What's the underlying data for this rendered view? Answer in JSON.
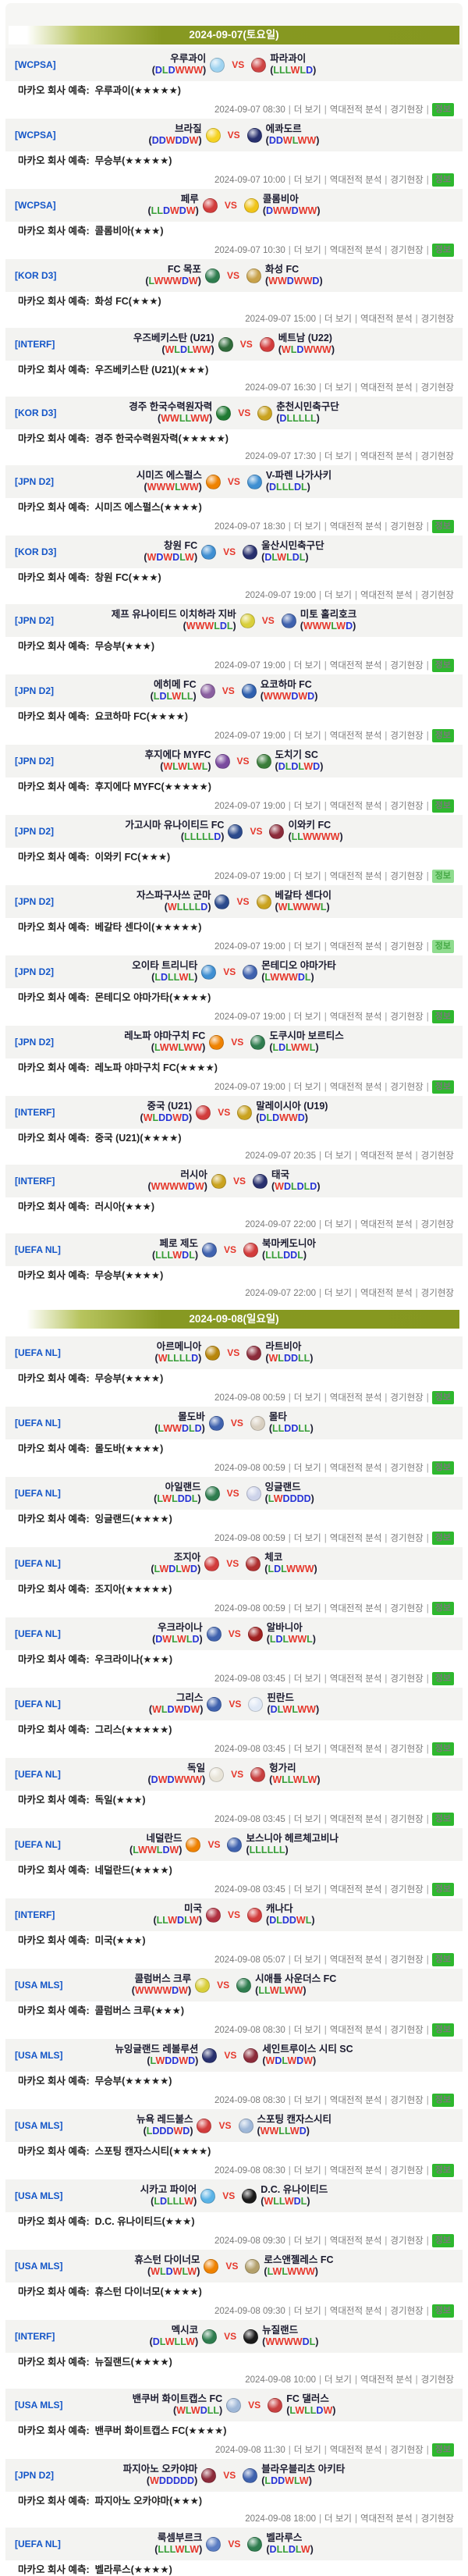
{
  "labels": {
    "prediction_prefix": "마카오 회사 예측:",
    "vs": "VS",
    "more_link": "더 보기",
    "h2h_link": "역대전적 분석",
    "venue_link": "경기현장",
    "info_badge": "정보",
    "star": "★"
  },
  "colors": {
    "win_letter": "#e5372b",
    "draw_letter": "#2733d6",
    "loss_letter": "#379e37",
    "league_link": "#1456c8",
    "date_bar_olive": "#879922",
    "info_badge_bg": "#2eb82e",
    "header_row_bg": "#f3f3f1"
  },
  "sections": [
    {
      "date_header": "2024-09-07(토요일)",
      "matches": [
        {
          "league": "[WCPSA]",
          "home": {
            "name": "우루과이",
            "form": "DLDWWW",
            "logo": "#9fd3f0"
          },
          "away": {
            "name": "파라과이",
            "form": "LLLWLD",
            "logo": "#cf4444"
          },
          "prediction": "우루과이",
          "stars": 5,
          "time": "2024-09-07 08:30",
          "info": "y"
        },
        {
          "league": "[WCPSA]",
          "home": {
            "name": "브라질",
            "form": "DDWDDW",
            "logo": "#f5d323"
          },
          "away": {
            "name": "에콰도르",
            "form": "DDWLWW",
            "logo": "#28306e"
          },
          "prediction": "무승부",
          "stars": 5,
          "time": "2024-09-07 10:00",
          "info": "y"
        },
        {
          "league": "[WCPSA]",
          "home": {
            "name": "페루",
            "form": "LLDWDW",
            "logo": "#d23c3c"
          },
          "away": {
            "name": "콜롬비아",
            "form": "DWWDWW",
            "logo": "#f0c419"
          },
          "prediction": "콜롬비아",
          "stars": 3,
          "time": "2024-09-07 10:30",
          "info": "y"
        },
        {
          "league": "[KOR D3]",
          "home": {
            "name": "FC 목포",
            "form": "LWWWDW",
            "logo": "#2f7d4f"
          },
          "away": {
            "name": "화성 FC",
            "form": "WWDWWD",
            "logo": "#c8a24a"
          },
          "prediction": "화성 FC",
          "stars": 3,
          "time": "2024-09-07 15:00",
          "info": "n"
        },
        {
          "league": "[INTERF]",
          "home": {
            "name": "우즈베키스탄 (U21)",
            "form": "WLDLWW",
            "logo": "#2f6b3a"
          },
          "away": {
            "name": "베트남 (U22)",
            "form": "WLDWWW",
            "logo": "#d23c3c"
          },
          "prediction": "우즈베키스탄 (U21)",
          "stars": 3,
          "time": "2024-09-07 16:30",
          "info": "n"
        },
        {
          "league": "[KOR D3]",
          "home": {
            "name": "경주 한국수력원자력",
            "form": "WWLLWW",
            "logo": "#1f7a33"
          },
          "away": {
            "name": "춘천시민축구단",
            "form": "DLLLLL",
            "logo": "#caa31f"
          },
          "prediction": "경주 한국수력원자력",
          "stars": 5,
          "time": "2024-09-07 17:30",
          "info": "n"
        },
        {
          "league": "[JPN D2]",
          "home": {
            "name": "시미즈 에스펄스",
            "form": "WWWLWW",
            "logo": "#ef8200"
          },
          "away": {
            "name": "V-파렌 나가사키",
            "form": "DLLLDL",
            "logo": "#3f8fd2"
          },
          "prediction": "시미즈 에스펄스",
          "stars": 4,
          "time": "2024-09-07 18:30",
          "info": "y"
        },
        {
          "league": "[KOR D3]",
          "home": {
            "name": "창원 FC",
            "form": "WDWDLW",
            "logo": "#3f8fd2"
          },
          "away": {
            "name": "울산시민축구단",
            "form": "DLWLDL",
            "logo": "#28306e"
          },
          "prediction": "창원 FC",
          "stars": 3,
          "time": "2024-09-07 19:00",
          "info": "n"
        },
        {
          "league": "[JPN D2]",
          "home": {
            "name": "제프 유나이티드 이치하라 지바",
            "form": "WWWLDL",
            "logo": "#d9cf3a"
          },
          "away": {
            "name": "미토 홀리호크",
            "form": "WWWLWD",
            "logo": "#3f62ae"
          },
          "prediction": "무승부",
          "stars": 3,
          "time": "2024-09-07 19:00",
          "info": "y"
        },
        {
          "league": "[JPN D2]",
          "home": {
            "name": "에히메 FC",
            "form": "LDLWLL",
            "logo": "#8a5fa0"
          },
          "away": {
            "name": "요코하마 FC",
            "form": "WWWDWD",
            "logo": "#2e5fae"
          },
          "prediction": "요코하마 FC",
          "stars": 4,
          "time": "2024-09-07 19:00",
          "info": "y"
        },
        {
          "league": "[JPN D2]",
          "home": {
            "name": "후지에다 MYFC",
            "form": "WLWLWL",
            "logo": "#7a4a9e"
          },
          "away": {
            "name": "도치기 SC",
            "form": "DLDLWD",
            "logo": "#3a7d3a"
          },
          "prediction": "후지에다 MYFC",
          "stars": 5,
          "time": "2024-09-07 19:00",
          "info": "y"
        },
        {
          "league": "[JPN D2]",
          "home": {
            "name": "가고시마 유나이티드 FC",
            "form": "LLLLLD",
            "logo": "#2b4a8c"
          },
          "away": {
            "name": "이와키 FC",
            "form": "LLWWWW",
            "logo": "#8c2b3a"
          },
          "prediction": "이와키 FC",
          "stars": 3,
          "time": "2024-09-07 19:00",
          "info": "f"
        },
        {
          "league": "[JPN D2]",
          "home": {
            "name": "자스파구사쓰 군마",
            "form": "WLLLLD",
            "logo": "#2b4a8c"
          },
          "away": {
            "name": "베갈타 센다이",
            "form": "WLWWWL",
            "logo": "#caa31f"
          },
          "prediction": "베갈타 센다이",
          "stars": 5,
          "time": "2024-09-07 19:00",
          "info": "f"
        },
        {
          "league": "[JPN D2]",
          "home": {
            "name": "오이타 트리니타",
            "form": "LDLLWL",
            "logo": "#3f8fd2"
          },
          "away": {
            "name": "몬테디오 야마가타",
            "form": "LWWWDL",
            "logo": "#3f62ae"
          },
          "prediction": "몬테디오 야마가타",
          "stars": 4,
          "time": "2024-09-07 19:00",
          "info": "y"
        },
        {
          "league": "[JPN D2]",
          "home": {
            "name": "레노파 야마구치 FC",
            "form": "LWWLWW",
            "logo": "#ef8200"
          },
          "away": {
            "name": "도쿠시마 보르티스",
            "form": "LDLWWL",
            "logo": "#2f7d4f"
          },
          "prediction": "레노파 야마구치 FC",
          "stars": 4,
          "time": "2024-09-07 19:00",
          "info": "y"
        },
        {
          "league": "[INTERF]",
          "home": {
            "name": "중국 (U21)",
            "form": "WLDDWD",
            "logo": "#d23c3c"
          },
          "away": {
            "name": "말레이시아 (U19)",
            "form": "DLDWWD",
            "logo": "#caa31f"
          },
          "prediction": "중국 (U21)",
          "stars": 4,
          "time": "2024-09-07 20:35",
          "info": "n"
        },
        {
          "league": "[INTERF]",
          "home": {
            "name": "러시아",
            "form": "WWWWDW",
            "logo": "#caa31f"
          },
          "away": {
            "name": "태국",
            "form": "WDLDLD",
            "logo": "#28306e"
          },
          "prediction": "러시아",
          "stars": 3,
          "time": "2024-09-07 22:00",
          "info": "n"
        },
        {
          "league": "[UEFA NL]",
          "home": {
            "name": "페로 제도",
            "form": "LLLWDL",
            "logo": "#3f62ae"
          },
          "away": {
            "name": "북마케도니아",
            "form": "LLLDDL",
            "logo": "#d23c3c"
          },
          "prediction": "무승부",
          "stars": 4,
          "time": "2024-09-07 22:00",
          "info": "n"
        }
      ]
    },
    {
      "date_header": "2024-09-08(일요일)",
      "matches": [
        {
          "league": "[UEFA NL]",
          "home": {
            "name": "아르메니아",
            "form": "WLLLLD",
            "logo": "#b8860b"
          },
          "away": {
            "name": "라트비아",
            "form": "WLDDLL",
            "logo": "#8c2b3a"
          },
          "prediction": "무승부",
          "stars": 4,
          "time": "2024-09-08 00:59",
          "info": "y"
        },
        {
          "league": "[UEFA NL]",
          "home": {
            "name": "몰도바",
            "form": "LWWDLD",
            "logo": "#3f62ae"
          },
          "away": {
            "name": "몰타",
            "form": "LLDDLL",
            "logo": "#d8cfc0"
          },
          "prediction": "몰도바",
          "stars": 4,
          "time": "2024-09-08 00:59",
          "info": "y"
        },
        {
          "league": "[UEFA NL]",
          "home": {
            "name": "아일랜드",
            "form": "LWLDDL",
            "logo": "#2f7d4f"
          },
          "away": {
            "name": "잉글랜드",
            "form": "LWDDDD",
            "logo": "#cdd3ea"
          },
          "prediction": "잉글랜드",
          "stars": 4,
          "time": "2024-09-08 00:59",
          "info": "y"
        },
        {
          "league": "[UEFA NL]",
          "home": {
            "name": "조지아",
            "form": "LWDLWD",
            "logo": "#d23c3c"
          },
          "away": {
            "name": "체코",
            "form": "LDLWWW",
            "logo": "#b03030"
          },
          "prediction": "조지아",
          "stars": 5,
          "time": "2024-09-08 00:59",
          "info": "y"
        },
        {
          "league": "[UEFA NL]",
          "home": {
            "name": "우크라이나",
            "form": "DWLWLD",
            "logo": "#3f62ae"
          },
          "away": {
            "name": "알바니아",
            "form": "LDLWWL",
            "logo": "#a02020"
          },
          "prediction": "우크라이나",
          "stars": 3,
          "time": "2024-09-08 03:45",
          "info": "y"
        },
        {
          "league": "[UEFA NL]",
          "home": {
            "name": "그리스",
            "form": "WLDWDW",
            "logo": "#3f62ae"
          },
          "away": {
            "name": "핀란드",
            "form": "DLWLWW",
            "logo": "#dfe8f5"
          },
          "prediction": "그리스",
          "stars": 5,
          "time": "2024-09-08 03:45",
          "info": "y"
        },
        {
          "league": "[UEFA NL]",
          "home": {
            "name": "독일",
            "form": "DWDWWW",
            "logo": "#e8e4d8"
          },
          "away": {
            "name": "헝가리",
            "form": "WLLWLW",
            "logo": "#c84040"
          },
          "prediction": "독일",
          "stars": 3,
          "time": "2024-09-08 03:45",
          "info": "y"
        },
        {
          "league": "[UEFA NL]",
          "home": {
            "name": "네덜란드",
            "form": "LWWLDW",
            "logo": "#ef8200"
          },
          "away": {
            "name": "보스니아 헤르체고비나",
            "form": "LLLLLL",
            "logo": "#3f62ae"
          },
          "prediction": "네덜란드",
          "stars": 4,
          "time": "2024-09-08 03:45",
          "info": "y"
        },
        {
          "league": "[INTERF]",
          "home": {
            "name": "미국",
            "form": "LLWDLW",
            "logo": "#b03040"
          },
          "away": {
            "name": "캐나다",
            "form": "DLDDWL",
            "logo": "#d23c3c"
          },
          "prediction": "미국",
          "stars": 3,
          "time": "2024-09-08 05:07",
          "info": "y"
        },
        {
          "league": "[USA MLS]",
          "home": {
            "name": "콜럼버스 크루",
            "form": "WWWWDW",
            "logo": "#d9cf3a"
          },
          "away": {
            "name": "시애틀 사운더스 FC",
            "form": "LLWLWW",
            "logo": "#2f7d4f"
          },
          "prediction": "콜럼버스 크루",
          "stars": 3,
          "time": "2024-09-08 08:30",
          "info": "y"
        },
        {
          "league": "[USA MLS]",
          "home": {
            "name": "뉴잉글랜드 레볼루션",
            "form": "LWDDWD",
            "logo": "#28306e"
          },
          "away": {
            "name": "세인트루이스 시티 SC",
            "form": "WDLWDW",
            "logo": "#8c2b3a"
          },
          "prediction": "무승부",
          "stars": 5,
          "time": "2024-09-08 08:30",
          "info": "y"
        },
        {
          "league": "[USA MLS]",
          "home": {
            "name": "뉴욕 레드불스",
            "form": "LDDDWD",
            "logo": "#d23c3c"
          },
          "away": {
            "name": "스포팅 캔자스시티",
            "form": "WWLLWD",
            "logo": "#9fb8d8"
          },
          "prediction": "스포팅 캔자스시티",
          "stars": 4,
          "time": "2024-09-08 08:30",
          "info": "y"
        },
        {
          "league": "[USA MLS]",
          "home": {
            "name": "시카고 파이어",
            "form": "LDLLLW",
            "logo": "#5ab3e6"
          },
          "away": {
            "name": "D.C. 유나이티드",
            "form": "WLLWDL",
            "logo": "#1a1a1a"
          },
          "prediction": "D.C. 유나이티드",
          "stars": 3,
          "time": "2024-09-08 09:30",
          "info": "y"
        },
        {
          "league": "[USA MLS]",
          "home": {
            "name": "휴스턴 다이너모",
            "form": "WLDWLW",
            "logo": "#ef8200"
          },
          "away": {
            "name": "로스앤젤레스 FC",
            "form": "LWLWWW",
            "logo": "#b3a06b"
          },
          "prediction": "휴스턴 다이너모",
          "stars": 4,
          "time": "2024-09-08 09:30",
          "info": "y"
        },
        {
          "league": "[INTERF]",
          "home": {
            "name": "멕시코",
            "form": "DLWLLW",
            "logo": "#2f7d4f"
          },
          "away": {
            "name": "뉴질랜드",
            "form": "WWWWDL",
            "logo": "#1a1a1a"
          },
          "prediction": "뉴질랜드",
          "stars": 4,
          "time": "2024-09-08 10:00",
          "info": "n"
        },
        {
          "league": "[USA MLS]",
          "home": {
            "name": "밴쿠버 화이트캡스 FC",
            "form": "WLWDLL",
            "logo": "#9fb8d8"
          },
          "away": {
            "name": "FC 댈러스",
            "form": "LWLLDW",
            "logo": "#c84040"
          },
          "prediction": "밴쿠버 화이트캡스 FC",
          "stars": 4,
          "time": "2024-09-08 11:30",
          "info": "y"
        },
        {
          "league": "[JPN D2]",
          "home": {
            "name": "파지아노 오카야마",
            "form": "WDDDDD",
            "logo": "#8c2b3a"
          },
          "away": {
            "name": "블라우블리츠 아키타",
            "form": "LDDWLW",
            "logo": "#3f62ae"
          },
          "prediction": "파지아노 오카야마",
          "stars": 3,
          "time": "2024-09-08 18:00",
          "info": "n"
        },
        {
          "league": "[UEFA NL]",
          "home": {
            "name": "룩셈부르크",
            "form": "LLLWLW",
            "logo": "#5a7dc3"
          },
          "away": {
            "name": "벨라루스",
            "form": "DLLDLW",
            "logo": "#2f7d4f"
          },
          "prediction": "벨라루스",
          "stars": 4,
          "time": null,
          "info": "n"
        }
      ]
    }
  ]
}
